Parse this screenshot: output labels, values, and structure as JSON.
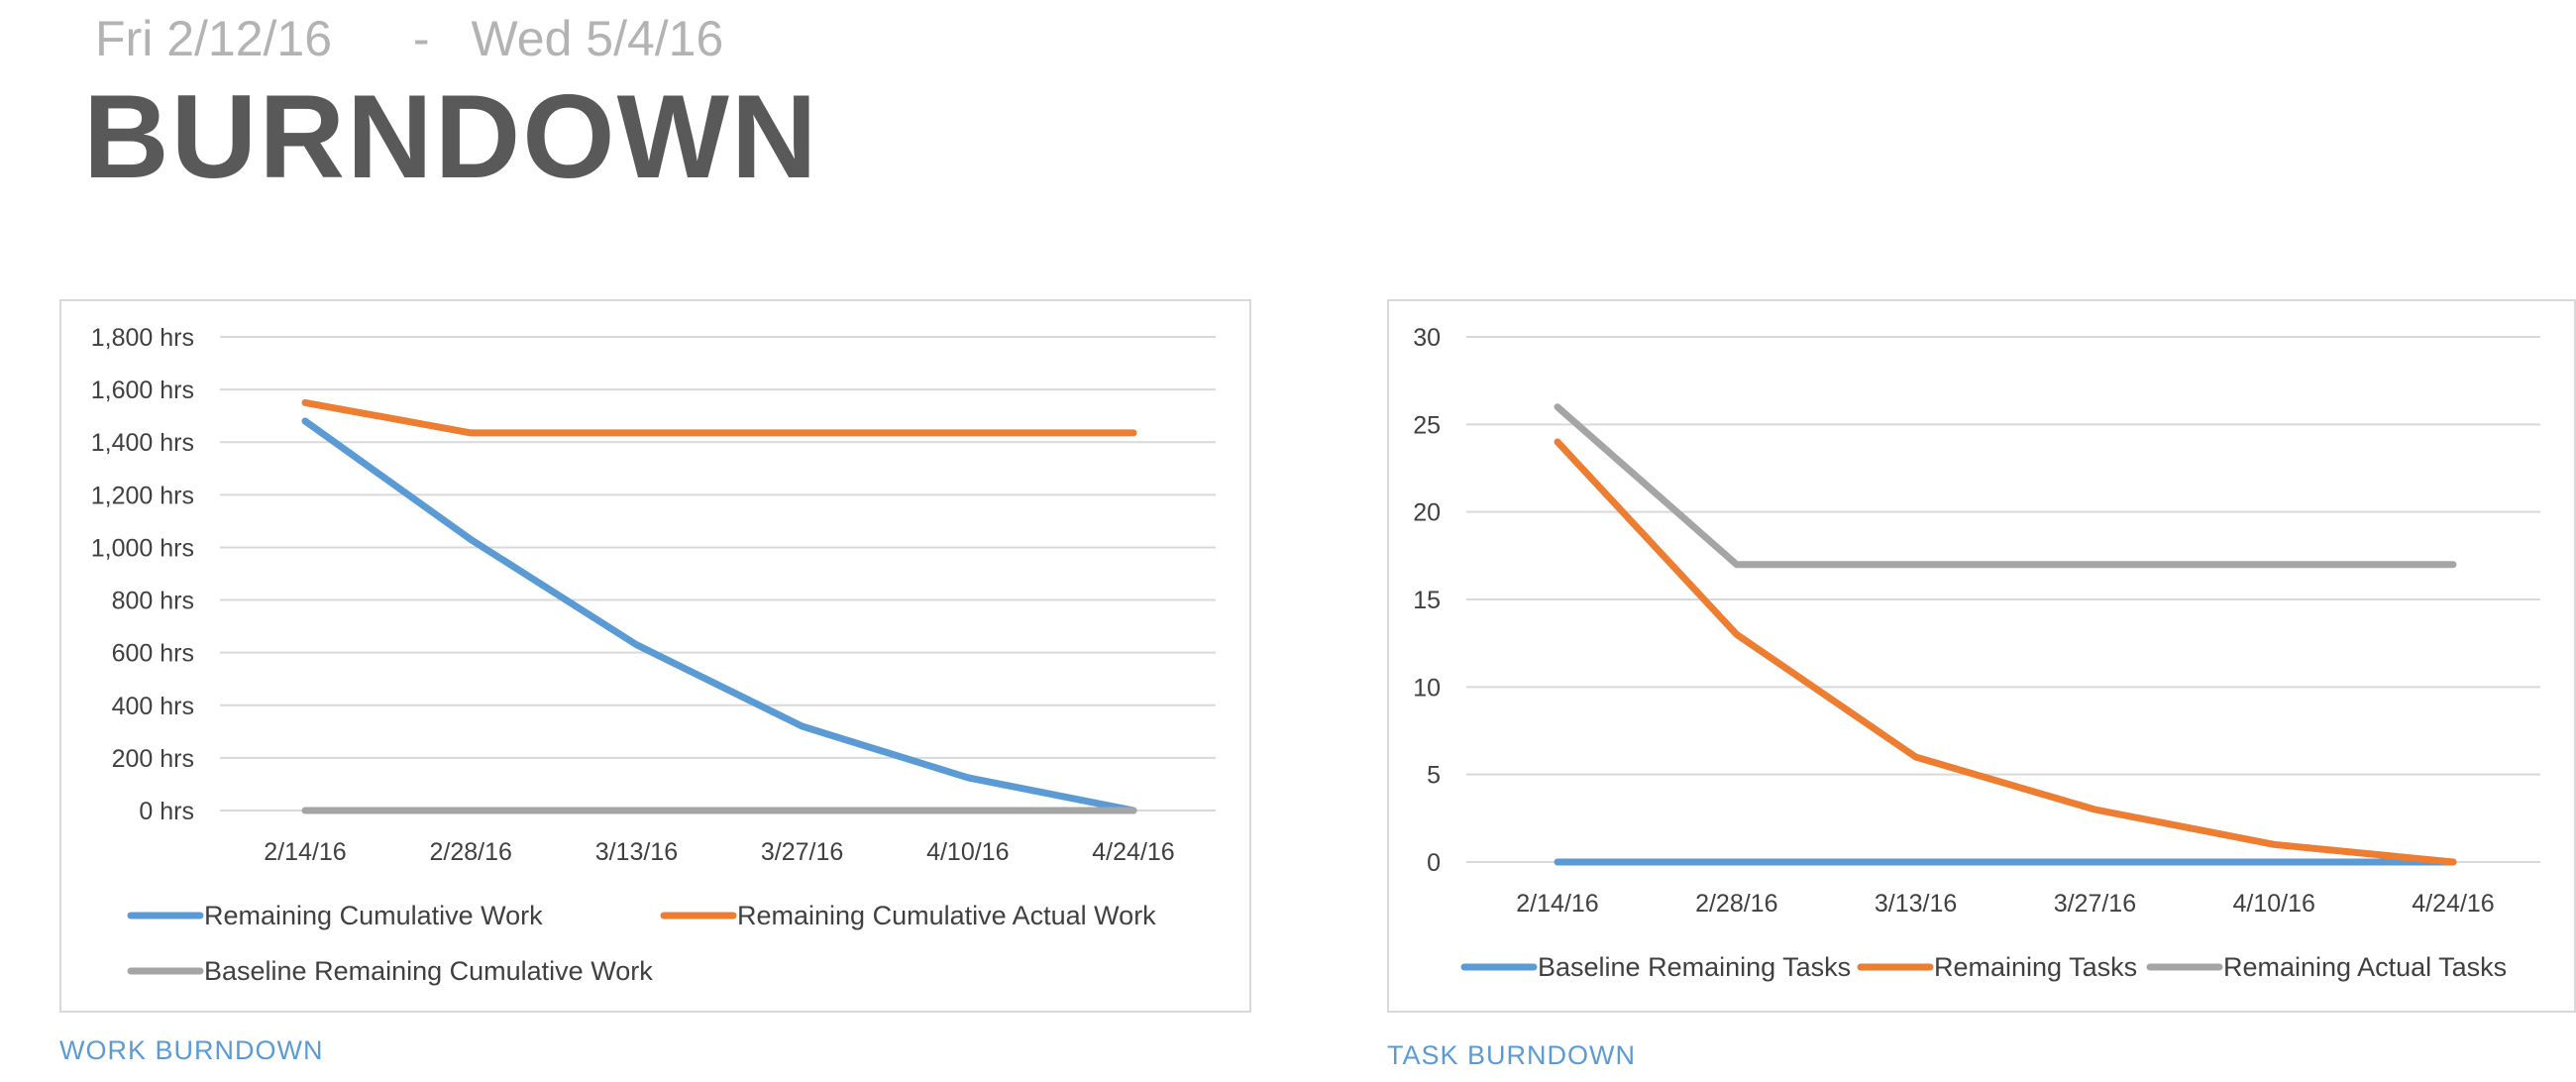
{
  "header": {
    "start_date": "Fri 2/12/16",
    "separator": "-",
    "end_date": "Wed 5/4/16",
    "title": "BURNDOWN"
  },
  "captions": {
    "work": "WORK BURNDOWN",
    "task": "TASK BURNDOWN"
  },
  "chart_data": [
    {
      "id": "work",
      "type": "line",
      "title": "",
      "xlabel": "",
      "ylabel": "",
      "categories": [
        "2/14/16",
        "2/28/16",
        "3/13/16",
        "3/27/16",
        "4/10/16",
        "4/24/16"
      ],
      "y_ticks": [
        "0 hrs",
        "200 hrs",
        "400 hrs",
        "600 hrs",
        "800 hrs",
        "1,000 hrs",
        "1,200 hrs",
        "1,400 hrs",
        "1,600 hrs",
        "1,800 hrs"
      ],
      "ylim": [
        0,
        1800
      ],
      "grid": true,
      "legend_position": "bottom",
      "series": [
        {
          "name": "Remaining Cumulative Work",
          "color": "#5b9bd5",
          "values": [
            1480,
            1030,
            630,
            320,
            125,
            0
          ]
        },
        {
          "name": "Remaining Cumulative Actual Work",
          "color": "#ed7d31",
          "values": [
            1550,
            1435,
            1435,
            1435,
            1435,
            1435
          ]
        },
        {
          "name": "Baseline Remaining Cumulative Work",
          "color": "#a5a5a5",
          "values": [
            0,
            0,
            0,
            0,
            0,
            0
          ]
        }
      ]
    },
    {
      "id": "task",
      "type": "line",
      "title": "",
      "xlabel": "",
      "ylabel": "",
      "categories": [
        "2/14/16",
        "2/28/16",
        "3/13/16",
        "3/27/16",
        "4/10/16",
        "4/24/16"
      ],
      "y_ticks": [
        "0",
        "5",
        "10",
        "15",
        "20",
        "25",
        "30"
      ],
      "ylim": [
        0,
        30
      ],
      "grid": true,
      "legend_position": "bottom",
      "series": [
        {
          "name": "Baseline Remaining Tasks",
          "color": "#5b9bd5",
          "values": [
            0,
            0,
            0,
            0,
            0,
            0
          ]
        },
        {
          "name": "Remaining Tasks",
          "color": "#ed7d31",
          "values": [
            24,
            13,
            6,
            3,
            1,
            0
          ]
        },
        {
          "name": "Remaining Actual Tasks",
          "color": "#a5a5a5",
          "values": [
            26,
            17,
            17,
            17,
            17,
            17
          ]
        }
      ]
    }
  ]
}
